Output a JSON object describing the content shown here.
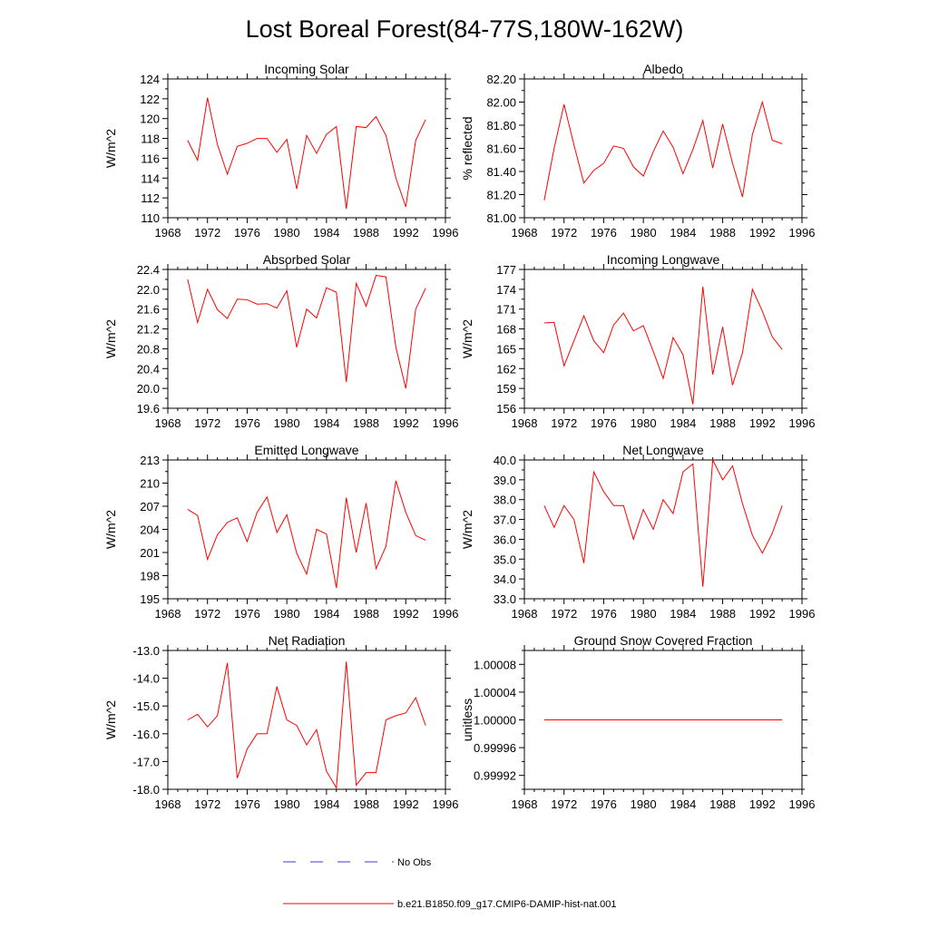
{
  "title": "Lost Boreal Forest(84-77S,180W-162W)",
  "legend": {
    "obs_label": "No Obs",
    "obs_color": "#3b3bd0",
    "model_label": "b.e21.B1850.f09_g17.CMIP6-DAMIP-hist-nat.001",
    "model_color": "#ff0000"
  },
  "chart_data": [
    {
      "type": "line",
      "title": "Incoming Solar",
      "ylabel": "W/m^2",
      "xlim": [
        1968,
        1996
      ],
      "xticks": [
        1968,
        1972,
        1976,
        1980,
        1984,
        1988,
        1992,
        1996
      ],
      "ylim": [
        110,
        124
      ],
      "yticks": [
        110,
        112,
        114,
        116,
        118,
        120,
        122,
        124
      ],
      "ytick_labels": [
        "110",
        "112",
        "114",
        "116",
        "118",
        "120",
        "122",
        "124"
      ],
      "series": [
        {
          "values": [
            117.8,
            115.8,
            122.1,
            117.4,
            114.4,
            117.2,
            117.5,
            118.0,
            118.0,
            116.6,
            117.9,
            112.9,
            118.3,
            116.5,
            118.4,
            119.2,
            110.9,
            119.2,
            119.1,
            120.2,
            118.3,
            114.0,
            111.1,
            117.8,
            119.9
          ]
        }
      ]
    },
    {
      "type": "line",
      "title": "Albedo",
      "ylabel": "% reflected",
      "xlim": [
        1968,
        1996
      ],
      "xticks": [
        1968,
        1972,
        1976,
        1980,
        1984,
        1988,
        1992,
        1996
      ],
      "ylim": [
        81.0,
        82.2
      ],
      "yticks": [
        81.0,
        81.2,
        81.4,
        81.6,
        81.8,
        82.0,
        82.2
      ],
      "ytick_labels": [
        "81.00",
        "81.20",
        "81.40",
        "81.60",
        "81.80",
        "82.00",
        "82.20"
      ],
      "series": [
        {
          "values": [
            81.15,
            81.6,
            81.98,
            81.63,
            81.3,
            81.41,
            81.47,
            81.62,
            81.6,
            81.44,
            81.36,
            81.57,
            81.75,
            81.61,
            81.38,
            81.59,
            81.84,
            81.43,
            81.81,
            81.47,
            81.18,
            81.72,
            82.0,
            81.67,
            81.64
          ]
        }
      ]
    },
    {
      "type": "line",
      "title": "Absorbed Solar",
      "ylabel": "W/m^2",
      "xlim": [
        1968,
        1996
      ],
      "xticks": [
        1968,
        1972,
        1976,
        1980,
        1984,
        1988,
        1992,
        1996
      ],
      "ylim": [
        19.6,
        22.4
      ],
      "yticks": [
        19.6,
        20.0,
        20.4,
        20.8,
        21.2,
        21.6,
        22.0,
        22.4
      ],
      "ytick_labels": [
        "19.6",
        "20.0",
        "20.4",
        "20.8",
        "21.2",
        "21.6",
        "22.0",
        "22.4"
      ],
      "series": [
        {
          "values": [
            22.2,
            21.33,
            22.0,
            21.59,
            21.41,
            21.8,
            21.79,
            21.7,
            21.71,
            21.62,
            21.97,
            20.83,
            21.6,
            21.42,
            22.03,
            21.94,
            20.13,
            22.12,
            21.66,
            22.28,
            22.25,
            20.83,
            20.0,
            21.6,
            22.02
          ]
        }
      ]
    },
    {
      "type": "line",
      "title": "Incoming Longwave",
      "ylabel": "W/m^2",
      "xlim": [
        1968,
        1996
      ],
      "xticks": [
        1968,
        1972,
        1976,
        1980,
        1984,
        1988,
        1992,
        1996
      ],
      "ylim": [
        156,
        177
      ],
      "yticks": [
        156,
        159,
        162,
        165,
        168,
        171,
        174,
        177
      ],
      "ytick_labels": [
        "156",
        "159",
        "162",
        "165",
        "168",
        "171",
        "174",
        "177"
      ],
      "series": [
        {
          "values": [
            168.9,
            169.0,
            162.4,
            166.2,
            170.0,
            166.2,
            164.4,
            168.6,
            170.4,
            167.7,
            168.5,
            164.6,
            160.5,
            166.7,
            164.1,
            156.6,
            174.4,
            161.1,
            168.3,
            159.5,
            164.4,
            174.0,
            170.7,
            166.8,
            164.9
          ]
        }
      ]
    },
    {
      "type": "line",
      "title": "Emitted Longwave",
      "ylabel": "W/m^2",
      "xlim": [
        1968,
        1996
      ],
      "xticks": [
        1968,
        1972,
        1976,
        1980,
        1984,
        1988,
        1992,
        1996
      ],
      "ylim": [
        195,
        213
      ],
      "yticks": [
        195,
        198,
        201,
        204,
        207,
        210,
        213
      ],
      "ytick_labels": [
        "195",
        "198",
        "201",
        "204",
        "207",
        "210",
        "213"
      ],
      "series": [
        {
          "values": [
            206.6,
            205.8,
            200.1,
            203.3,
            204.9,
            205.5,
            202.4,
            206.2,
            208.2,
            203.6,
            205.9,
            200.9,
            198.2,
            204.0,
            203.4,
            196.4,
            208.1,
            201.0,
            207.4,
            198.9,
            201.8,
            210.3,
            206.2,
            203.2,
            202.6
          ]
        }
      ]
    },
    {
      "type": "line",
      "title": "Net Longwave",
      "ylabel": "W/m^2",
      "xlim": [
        1968,
        1996
      ],
      "xticks": [
        1968,
        1972,
        1976,
        1980,
        1984,
        1988,
        1992,
        1996
      ],
      "ylim": [
        33.0,
        40.0
      ],
      "yticks": [
        33.0,
        34.0,
        35.0,
        36.0,
        37.0,
        38.0,
        39.0,
        40.0
      ],
      "ytick_labels": [
        "33.0",
        "34.0",
        "35.0",
        "36.0",
        "37.0",
        "38.0",
        "39.0",
        "40.0"
      ],
      "series": [
        {
          "values": [
            37.7,
            36.6,
            37.7,
            37.0,
            34.8,
            39.4,
            38.4,
            37.7,
            37.7,
            36.0,
            37.5,
            36.5,
            38.0,
            37.3,
            39.4,
            39.8,
            33.6,
            40.0,
            39.0,
            39.7,
            37.8,
            36.2,
            35.3,
            36.3,
            37.7
          ]
        }
      ]
    },
    {
      "type": "line",
      "title": "Net Radiation",
      "ylabel": "W/m^2",
      "xlim": [
        1968,
        1996
      ],
      "xticks": [
        1968,
        1972,
        1976,
        1980,
        1984,
        1988,
        1992,
        1996
      ],
      "ylim": [
        -18.0,
        -13.0
      ],
      "yticks": [
        -18.0,
        -17.0,
        -16.0,
        -15.0,
        -14.0,
        -13.0
      ],
      "ytick_labels": [
        "-18.0",
        "-17.0",
        "-16.0",
        "-15.0",
        "-14.0",
        "-13.0"
      ],
      "series": [
        {
          "values": [
            -15.5,
            -15.3,
            -15.75,
            -15.35,
            -13.45,
            -17.6,
            -16.55,
            -16.0,
            -16.0,
            -14.3,
            -15.5,
            -15.7,
            -16.4,
            -15.85,
            -17.35,
            -17.95,
            -13.4,
            -17.85,
            -17.4,
            -17.4,
            -15.5,
            -15.35,
            -15.25,
            -14.7,
            -15.7
          ]
        }
      ]
    },
    {
      "type": "line",
      "title": "Ground Snow Covered Fraction",
      "ylabel": "unitless",
      "xlim": [
        1968,
        1996
      ],
      "xticks": [
        1968,
        1972,
        1976,
        1980,
        1984,
        1988,
        1992,
        1996
      ],
      "ylim": [
        0.9999,
        1.0001
      ],
      "yticks": [
        0.99992,
        0.99996,
        1.0,
        1.00004,
        1.00008
      ],
      "ytick_labels": [
        "0.99992",
        "0.99996",
        "1.00000",
        "1.00004",
        "1.00008"
      ],
      "series": [
        {
          "values": [
            1.0,
            1.0,
            1.0,
            1.0,
            1.0,
            1.0,
            1.0,
            1.0,
            1.0,
            1.0,
            1.0,
            1.0,
            1.0,
            1.0,
            1.0,
            1.0,
            1.0,
            1.0,
            1.0,
            1.0,
            1.0,
            1.0,
            1.0,
            1.0,
            1.0
          ]
        }
      ]
    }
  ]
}
